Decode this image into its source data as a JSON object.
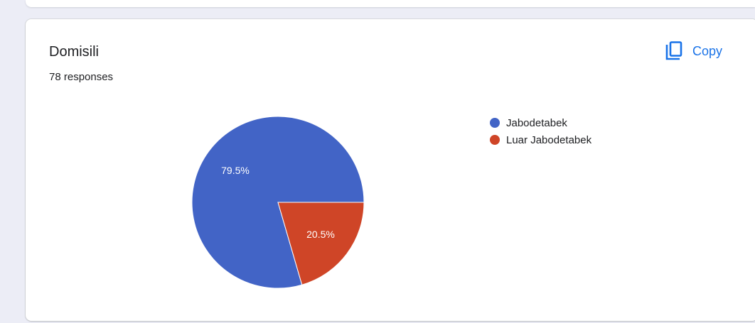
{
  "card": {
    "title": "Domisili",
    "responses": "78 responses",
    "copy_label": "Copy",
    "copy_icon": "copy-icon"
  },
  "colors": {
    "accent": "#1a73e8",
    "series_1": "#4264c6",
    "series_2": "#cf4527"
  },
  "chart_data": {
    "type": "pie",
    "title": "Domisili",
    "categories": [
      "Jabodetabek",
      "Luar Jabodetabek"
    ],
    "values": [
      79.5,
      20.5
    ],
    "labels": [
      "79.5%",
      "20.5%"
    ],
    "legend_position": "right"
  }
}
